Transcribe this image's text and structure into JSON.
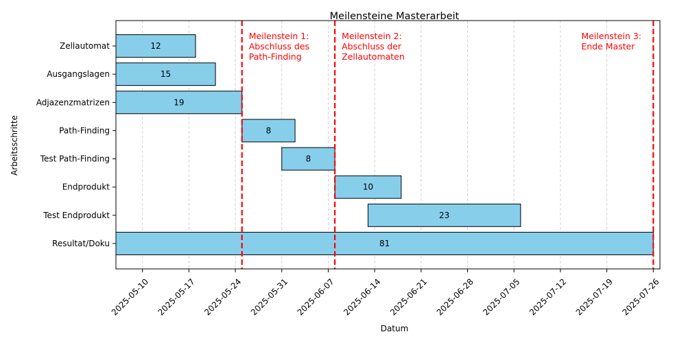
{
  "chart_data": {
    "type": "gantt",
    "title": "Meilensteine Masterarbeit",
    "xlabel": "Datum",
    "ylabel": "Arbeitsschritte",
    "xlim": [
      "2025-05-06",
      "2025-07-27"
    ],
    "x_ticks": [
      "2025-05-10",
      "2025-05-17",
      "2025-05-24",
      "2025-05-31",
      "2025-06-07",
      "2025-06-14",
      "2025-06-21",
      "2025-06-28",
      "2025-07-05",
      "2025-07-12",
      "2025-07-19",
      "2025-07-26"
    ],
    "grid": "vertical dashed",
    "bar_color": "#87CEEB",
    "milestone_color": "#FF0000",
    "tasks": [
      {
        "name": "Zellautomat",
        "start": "2025-05-06",
        "duration": 12
      },
      {
        "name": "Ausgangslagen",
        "start": "2025-05-06",
        "duration": 15
      },
      {
        "name": "Adjazenzmatrizen",
        "start": "2025-05-06",
        "duration": 19
      },
      {
        "name": "Path-Finding",
        "start": "2025-05-25",
        "duration": 8
      },
      {
        "name": "Test Path-Finding",
        "start": "2025-05-31",
        "duration": 8
      },
      {
        "name": "Endprodukt",
        "start": "2025-06-08",
        "duration": 10
      },
      {
        "name": "Test Endprodukt",
        "start": "2025-06-13",
        "duration": 23
      },
      {
        "name": "Resultat/Doku",
        "start": "2025-05-06",
        "duration": 81
      }
    ],
    "milestones": [
      {
        "date": "2025-05-25",
        "lines": [
          "Meilenstein 1:",
          "Abschluss des",
          "Path-Finding"
        ]
      },
      {
        "date": "2025-06-08",
        "lines": [
          "Meilenstein 2:",
          "Abschluss der",
          "Zellautomaten"
        ]
      },
      {
        "date": "2025-07-26",
        "lines": [
          "Meilenstein 3:",
          "Ende Master"
        ]
      }
    ]
  }
}
